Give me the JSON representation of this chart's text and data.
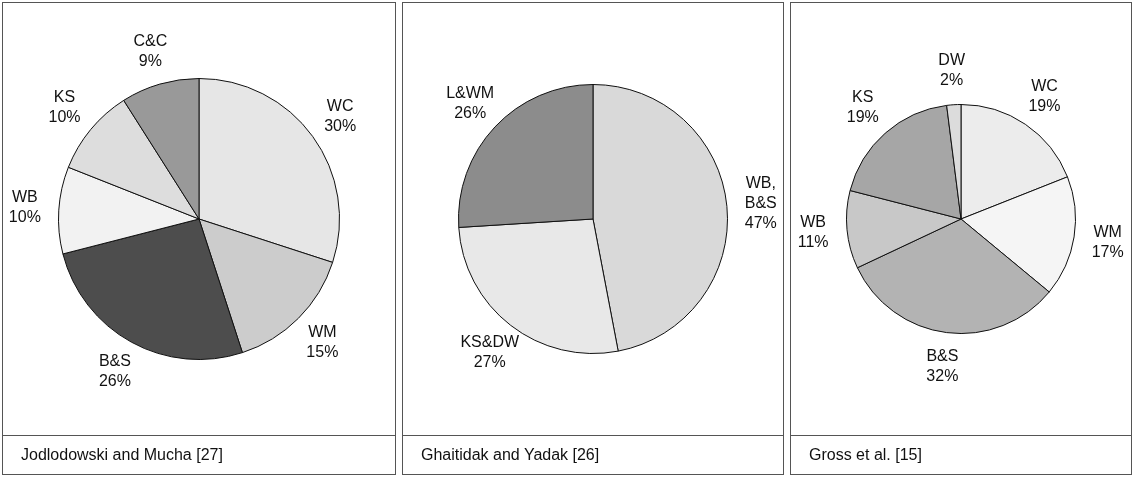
{
  "chart_data": [
    {
      "type": "pie",
      "title": "Jodlodowski and Mucha [27]",
      "categories": [
        "WC",
        "WM",
        "B&S",
        "WB",
        "KS",
        "C&C"
      ],
      "values": [
        30,
        15,
        26,
        10,
        10,
        9
      ],
      "value_labels": [
        "30%",
        "15%",
        "26%",
        "10%",
        "10%",
        "9%"
      ],
      "colors": [
        "#e6e6e6",
        "#cccccc",
        "#4d4d4d",
        "#f2f2f2",
        "#dddddd",
        "#999999"
      ]
    },
    {
      "type": "pie",
      "title": "Ghaitidak and Yadak [26]",
      "categories": [
        "WB, B&S",
        "KS&DW",
        "L&WM"
      ],
      "values": [
        47,
        27,
        26
      ],
      "value_labels": [
        "47%",
        "27%",
        "26%"
      ],
      "colors": [
        "#d9d9d9",
        "#e8e8e8",
        "#8c8c8c"
      ]
    },
    {
      "type": "pie",
      "title": "Gross et al. [15]",
      "categories": [
        "WC",
        "WM",
        "B&S",
        "WB",
        "KS",
        "DW"
      ],
      "values": [
        19,
        17,
        32,
        11,
        19,
        2
      ],
      "value_labels": [
        "19%",
        "17%",
        "32%",
        "11%",
        "19%",
        "2%"
      ],
      "colors": [
        "#ececec",
        "#f5f5f5",
        "#b3b3b3",
        "#c8c8c8",
        "#a6a6a6",
        "#dcdcdc"
      ]
    }
  ]
}
